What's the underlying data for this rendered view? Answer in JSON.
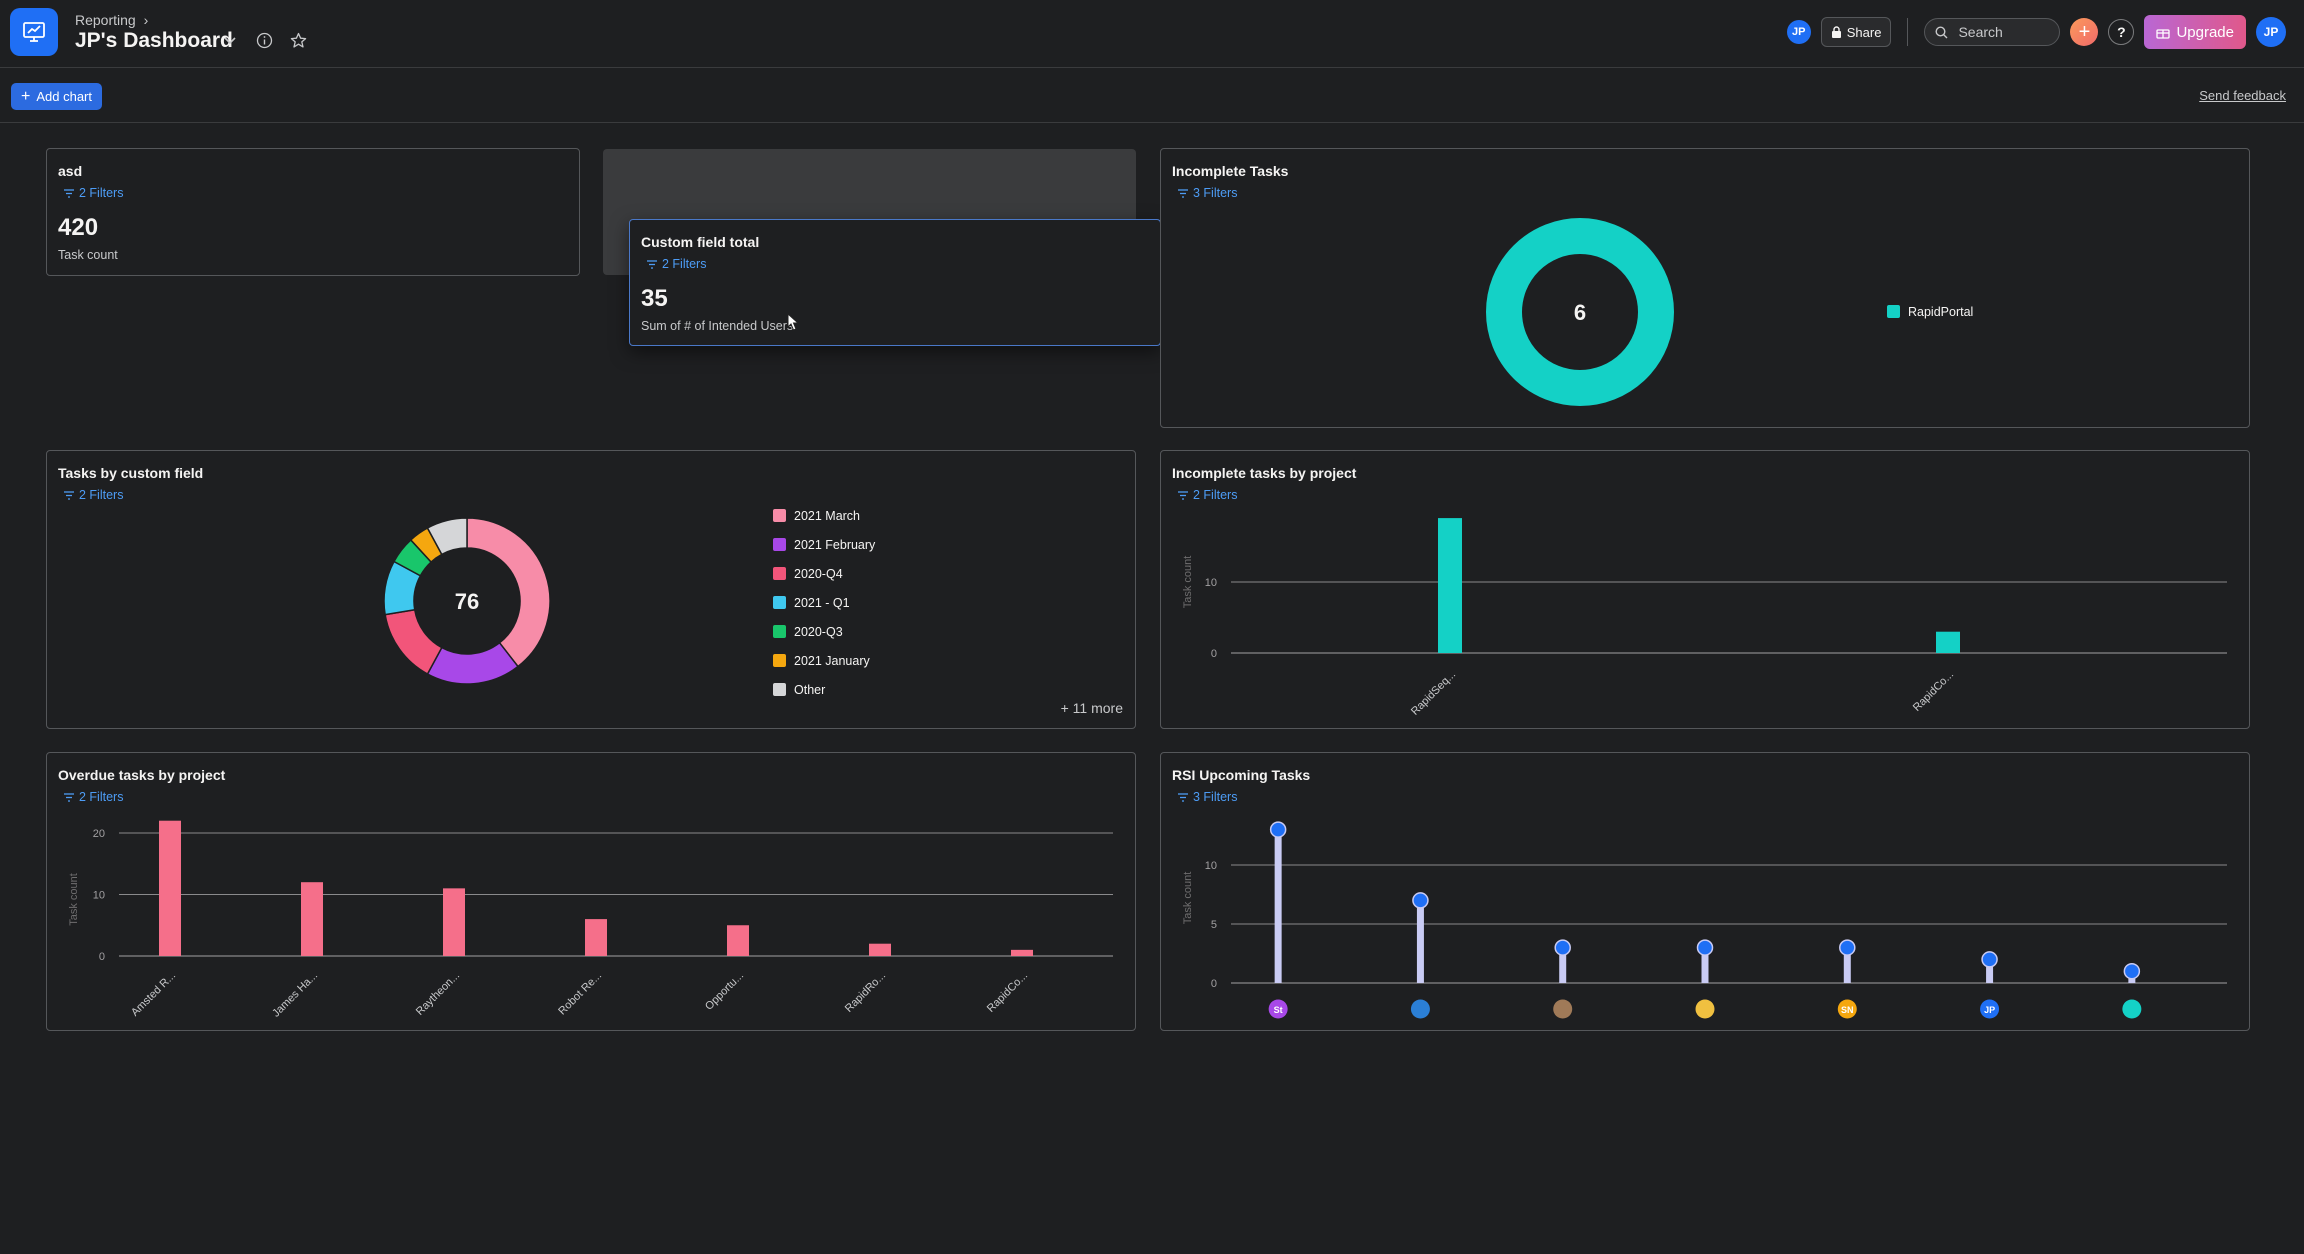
{
  "header": {
    "breadcrumb": "Reporting",
    "title": "JP's Dashboard",
    "user_initials": "JP",
    "share_label": "Share",
    "search_placeholder": "Search",
    "upgrade_label": "Upgrade",
    "help_label": "?"
  },
  "toolbar": {
    "add_chart_label": "Add chart",
    "feedback_label": "Send feedback"
  },
  "cards": {
    "asd": {
      "title": "asd",
      "filters": "2 Filters",
      "value": "420",
      "caption": "Task count"
    },
    "custom_total": {
      "title": "Custom field total",
      "filters": "2 Filters",
      "value": "35",
      "caption": "Sum of # of Intended Users"
    },
    "incomplete": {
      "title": "Incomplete Tasks",
      "filters": "3 Filters",
      "center": "6",
      "legend": "RapidPortal",
      "color": "#14d1c6"
    },
    "by_field": {
      "title": "Tasks by custom field",
      "filters": "2 Filters",
      "center": "76",
      "more": "+ 11 more",
      "legend": [
        {
          "label": "2021 March",
          "color": "#f78ca8"
        },
        {
          "label": "2021 February",
          "color": "#a848e8"
        },
        {
          "label": "2020-Q4",
          "color": "#f2557a"
        },
        {
          "label": "2021 - Q1",
          "color": "#3fc8ef"
        },
        {
          "label": "2020-Q3",
          "color": "#19c66b"
        },
        {
          "label": "2021 January",
          "color": "#f5a70f"
        },
        {
          "label": "Other",
          "color": "#d5d6d8"
        }
      ]
    },
    "inc_project": {
      "title": "Incomplete tasks by project",
      "filters": "2 Filters",
      "ylabel": "Task count"
    },
    "overdue": {
      "title": "Overdue tasks by project",
      "filters": "2 Filters",
      "ylabel": "Task count"
    },
    "rsi": {
      "title": "RSI Upcoming Tasks",
      "filters": "3 Filters",
      "ylabel": "Task count",
      "avatars": [
        {
          "label": "St",
          "color": "#a848e8"
        },
        {
          "label": "",
          "color": "#2b7fd6"
        },
        {
          "label": "",
          "color": "#a07a58"
        },
        {
          "label": "",
          "color": "#f0c040"
        },
        {
          "label": "SN",
          "color": "#f5a70f"
        },
        {
          "label": "JP",
          "color": "#1f6ff5"
        },
        {
          "label": "",
          "color": "#14d1c6"
        }
      ]
    }
  },
  "chart_data": [
    {
      "id": "incomplete_tasks",
      "type": "pie",
      "title": "Incomplete Tasks",
      "categories": [
        "RapidPortal"
      ],
      "values": [
        6
      ]
    },
    {
      "id": "tasks_by_custom_field",
      "type": "pie",
      "title": "Tasks by custom field",
      "total": 76,
      "categories": [
        "2021 March",
        "2021 February",
        "2020-Q4",
        "2021 - Q1",
        "2020-Q3",
        "2021 January",
        "Other"
      ],
      "values": [
        30,
        14,
        11,
        8,
        4,
        3,
        6
      ]
    },
    {
      "id": "incomplete_by_project",
      "type": "bar",
      "title": "Incomplete tasks by project",
      "categories": [
        "RapidSeq...",
        "RapidCo..."
      ],
      "values": [
        19,
        3
      ],
      "ylabel": "Task count",
      "yticks": [
        0,
        10
      ],
      "ylim": [
        0,
        20
      ],
      "color": "#14d1c6"
    },
    {
      "id": "overdue_by_project",
      "type": "bar",
      "title": "Overdue tasks by project",
      "categories": [
        "Amsted R...",
        "James Ha...",
        "Raytheon...",
        "Robot Re...",
        "Opportu...",
        "RapidRo...",
        "RapidCo..."
      ],
      "values": [
        22,
        12,
        11,
        6,
        5,
        2,
        1
      ],
      "ylabel": "Task count",
      "yticks": [
        0,
        10,
        20
      ],
      "ylim": [
        0,
        22
      ],
      "color": "#f56f8a"
    },
    {
      "id": "rsi_upcoming",
      "type": "scatter",
      "title": "RSI Upcoming Tasks",
      "categories": [
        "St",
        "",
        "",
        "",
        "SN",
        "JP",
        ""
      ],
      "values": [
        13,
        7,
        3,
        3,
        3,
        2,
        1
      ],
      "ylabel": "Task count",
      "yticks": [
        0,
        5,
        10
      ],
      "ylim": [
        0,
        13
      ],
      "color": "#1f6ff5"
    }
  ]
}
